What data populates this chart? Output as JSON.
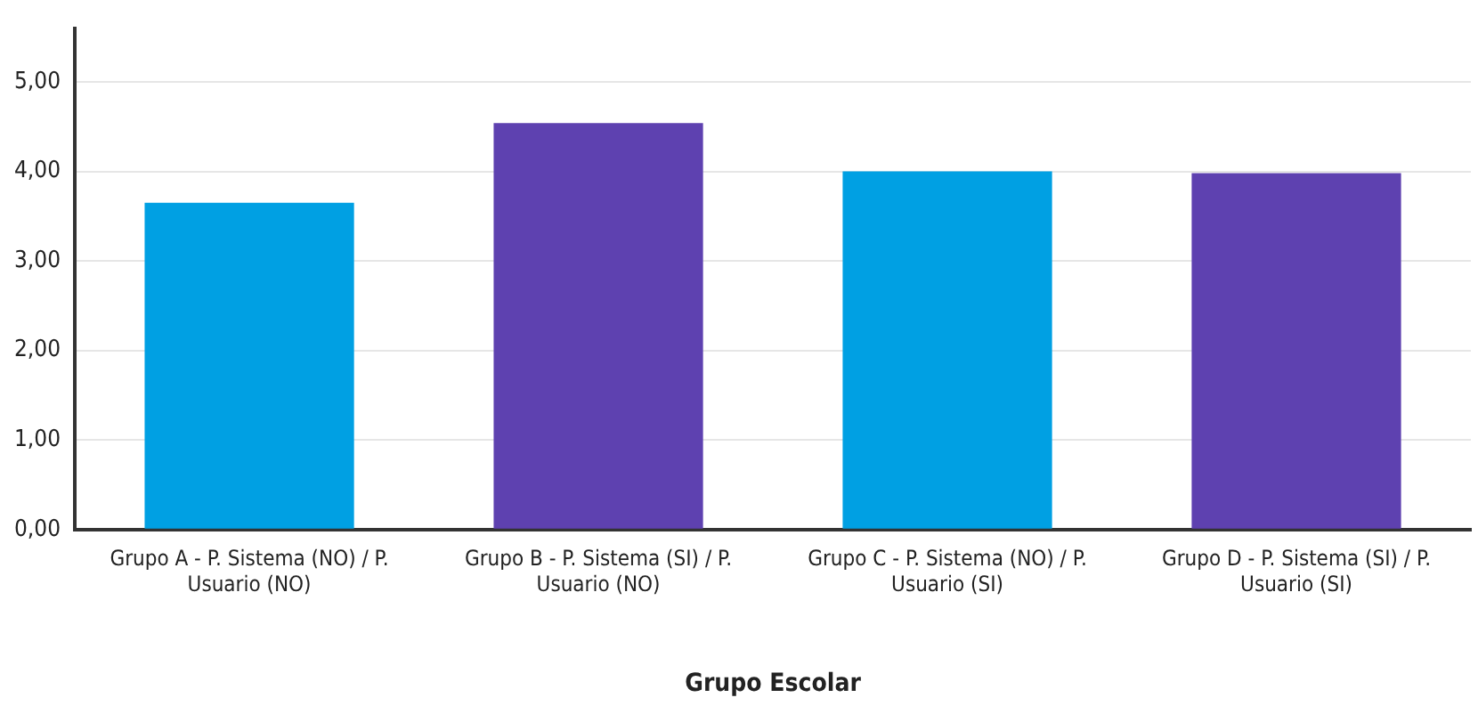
{
  "chart_data": {
    "type": "bar",
    "xlabel": "Grupo Escolar",
    "categories": [
      "Grupo A - P. Sistema (NO) / P. Usuario (NO)",
      "Grupo B - P. Sistema (SI) / P. Usuario (NO)",
      "Grupo C - P. Sistema (NO) / P. Usuario (SI)",
      "Grupo D - P. Sistema (SI) / P. Usuario (SI)"
    ],
    "values": [
      3.65,
      4.54,
      4.0,
      3.98
    ],
    "colors": [
      "#00a0e3",
      "#5e41b0",
      "#00a0e3",
      "#5e41b0"
    ],
    "ylim": [
      0,
      5.6
    ],
    "yticks": [
      {
        "value": 0,
        "label": "0,00"
      },
      {
        "value": 1,
        "label": "1,00"
      },
      {
        "value": 2,
        "label": "2,00"
      },
      {
        "value": 3,
        "label": "3,00"
      },
      {
        "value": 4,
        "label": "4,00"
      },
      {
        "value": 5,
        "label": "5,00"
      }
    ],
    "grid": "y",
    "legend": false
  }
}
